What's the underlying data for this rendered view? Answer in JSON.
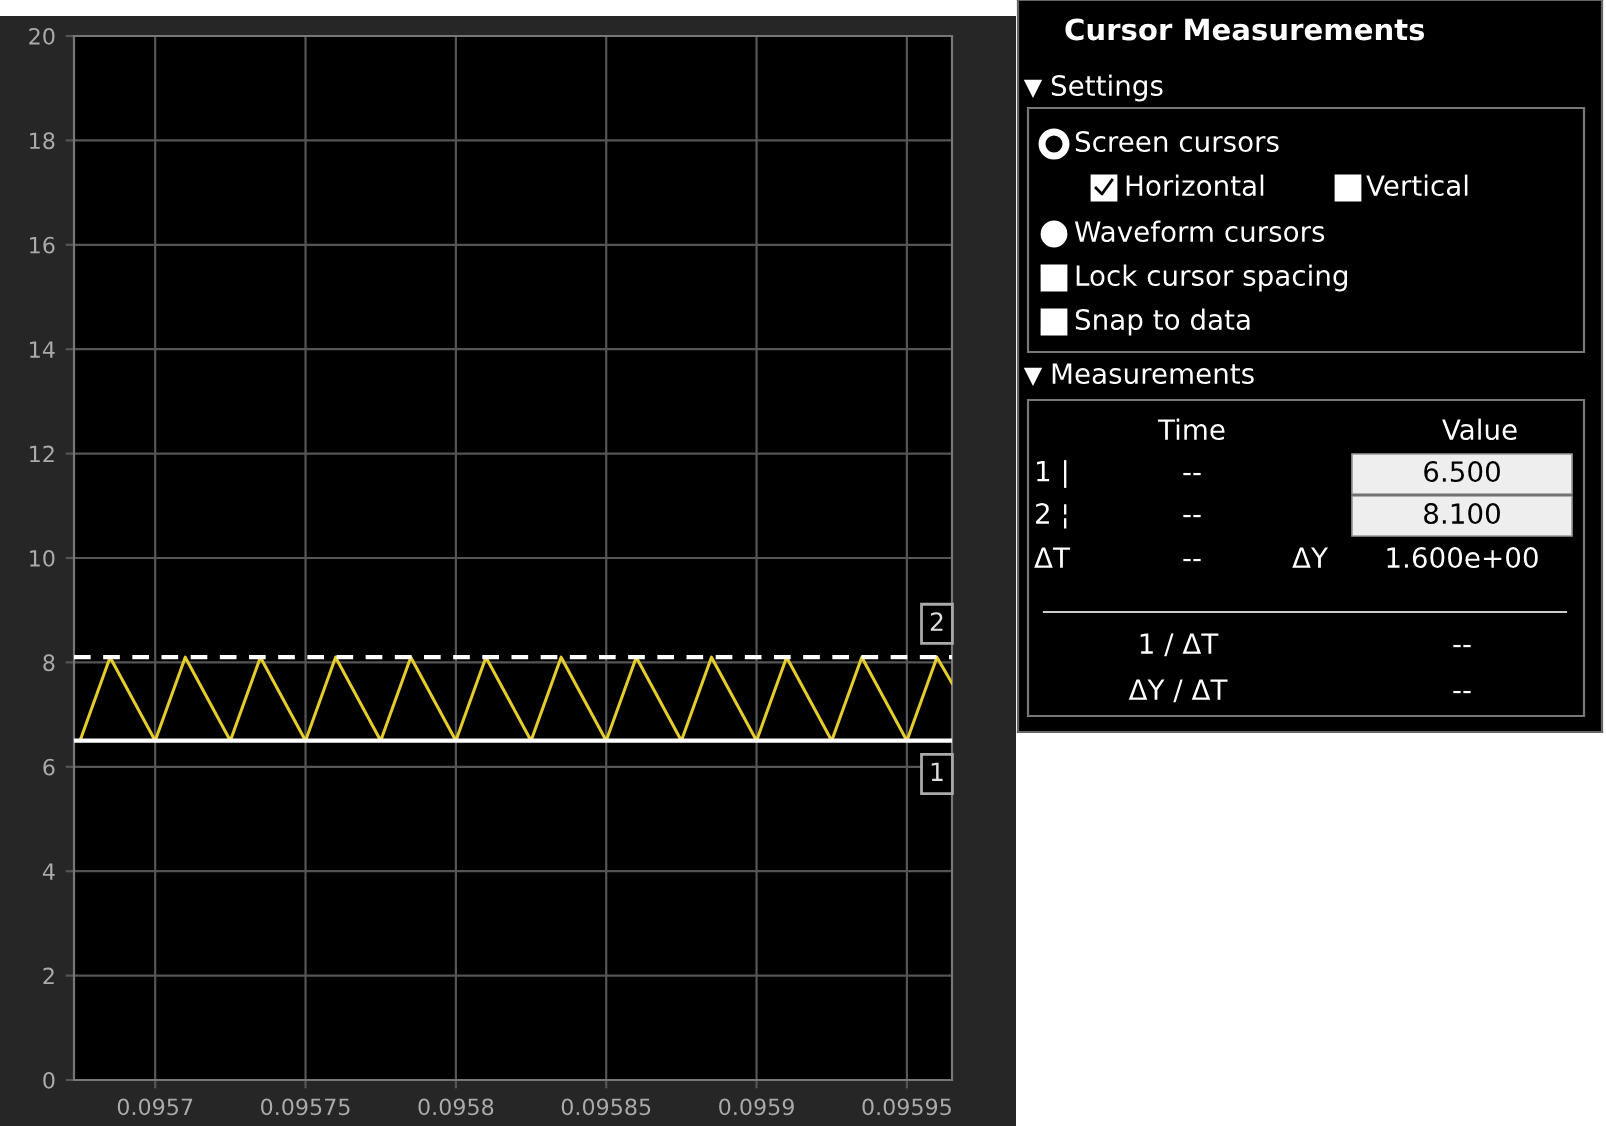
{
  "chart_data": [
    {
      "type": "line",
      "x": [
        0.095675,
        0.095685,
        0.0957,
        0.09571,
        0.095725,
        0.095735,
        0.09575,
        0.09576,
        0.095775,
        0.095785,
        0.0958,
        0.09581,
        0.095825,
        0.095835,
        0.09585,
        0.09586,
        0.095875,
        0.095885,
        0.0959,
        0.09591,
        0.095925,
        0.095935,
        0.09595,
        0.09596,
        0.095965
      ],
      "series": [
        {
          "color": "#e3cc2b",
          "values": [
            6.5,
            8.1,
            6.5,
            8.1,
            6.5,
            8.1,
            6.5,
            8.1,
            6.5,
            8.1,
            6.5,
            8.1,
            6.5,
            8.1,
            6.5,
            8.1,
            6.5,
            8.1,
            6.5,
            8.1,
            6.5,
            8.1,
            6.5,
            8.1,
            7.6
          ]
        }
      ],
      "xlim": [
        0.095673,
        0.095965
      ],
      "xticks": [
        0.0957,
        0.09575,
        0.0958,
        0.09585,
        0.0959,
        0.09595
      ],
      "ylim": [
        0,
        20
      ],
      "yticks": [
        0,
        2,
        4,
        6,
        8,
        10,
        12,
        14,
        16,
        18,
        20
      ],
      "grid": true,
      "ref_lines": [
        {
          "axis": "y",
          "value": 6.5,
          "color": "#ffffff",
          "line_style": "solid"
        },
        {
          "axis": "y",
          "value": 8.1,
          "color": "#ffffff",
          "line_style": "dashed"
        }
      ],
      "annotations": [
        {
          "text": "2",
          "x": 0.09596,
          "y": 8.1
        },
        {
          "text": "1",
          "x": 0.09596,
          "y": 6.5
        }
      ]
    },
    {
      "type": "other",
      "title": "Cursor Measurements",
      "annotations": [
        "Settings",
        "Screen cursors",
        "Horizontal",
        "Vertical",
        "Waveform cursors",
        "Lock cursor spacing",
        "Snap to data",
        "Measurements",
        "Time",
        "Value",
        "1 |",
        "--",
        "6.500",
        "2 ¦",
        "--",
        "8.100",
        "ΔT",
        "--",
        "ΔY",
        "1.600e+00",
        "1 / ΔT",
        "--",
        "ΔY / ΔT",
        "--"
      ]
    }
  ]
}
